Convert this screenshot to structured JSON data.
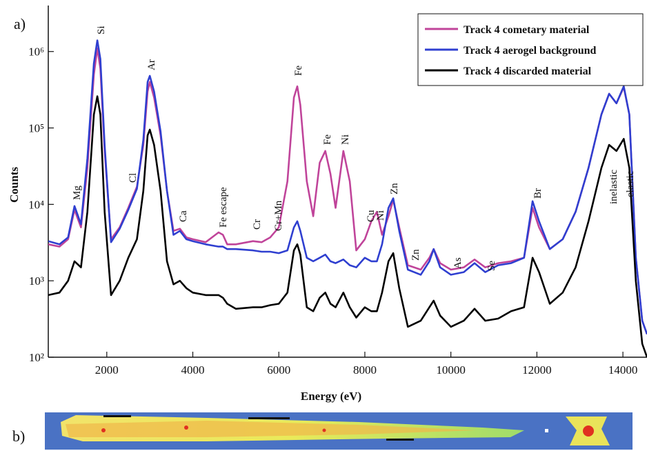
{
  "chart_data": {
    "type": "line",
    "panel_label": "a)",
    "image_label": "b)",
    "xlabel": "Energy (eV)",
    "ylabel": "Counts",
    "log_y": true,
    "xlim": [
      640,
      14560
    ],
    "ylim": [
      100,
      4000000
    ],
    "xticks": [
      2000,
      4000,
      6000,
      8000,
      10000,
      12000,
      14000
    ],
    "yticks": [
      {
        "value": 100,
        "label": "10²"
      },
      {
        "value": 1000,
        "label": "10³"
      },
      {
        "value": 10000,
        "label": "10⁴"
      },
      {
        "value": 100000,
        "label": "10⁵"
      },
      {
        "value": 1000000,
        "label": "10⁶"
      }
    ],
    "legend": "upper right",
    "annotations": [
      "Mg",
      "Si",
      "Cl",
      "Ar",
      "Ca",
      "Fe escape",
      "Cr",
      "Cr+Mn",
      "Fe",
      "Fe",
      "Ni",
      "Cu",
      "Ni",
      "Zn",
      "Zn",
      "As",
      "Se",
      "Br",
      "inelastic",
      "elastic"
    ],
    "x": [
      640,
      900,
      1100,
      1250,
      1400,
      1550,
      1700,
      1780,
      1850,
      1950,
      2100,
      2300,
      2500,
      2700,
      2850,
      2950,
      3000,
      3100,
      3250,
      3400,
      3550,
      3700,
      3850,
      4000,
      4300,
      4600,
      4700,
      4800,
      5000,
      5400,
      5600,
      5800,
      6000,
      6200,
      6350,
      6430,
      6500,
      6650,
      6800,
      6950,
      7080,
      7200,
      7320,
      7500,
      7650,
      7800,
      8000,
      8150,
      8280,
      8400,
      8550,
      8660,
      8800,
      9000,
      9300,
      9500,
      9600,
      9750,
      10000,
      10300,
      10550,
      10800,
      11100,
      11400,
      11700,
      11900,
      12050,
      12300,
      12600,
      12900,
      13200,
      13500,
      13680,
      13850,
      14020,
      14150,
      14300,
      14450,
      14560
    ],
    "series": [
      {
        "name": "Track 4 cometary material",
        "color": "#c0449a",
        "values": [
          3000,
          2800,
          3500,
          8500,
          5000,
          30000,
          500000,
          1100000,
          600000,
          50000,
          3500,
          5000,
          9000,
          17000,
          60000,
          300000,
          400000,
          250000,
          80000,
          15000,
          4500,
          4800,
          3700,
          3500,
          3200,
          4300,
          4000,
          3000,
          3000,
          3300,
          3200,
          3700,
          5000,
          20000,
          250000,
          350000,
          200000,
          20000,
          7000,
          35000,
          50000,
          25000,
          9000,
          50000,
          20000,
          2500,
          3500,
          6000,
          8000,
          4000,
          7000,
          11500,
          5000,
          1600,
          1400,
          2000,
          2600,
          1700,
          1400,
          1500,
          1900,
          1500,
          1700,
          1800,
          2000,
          9000,
          5000,
          2600,
          3500,
          8000,
          30000,
          150000,
          280000,
          210000,
          340000,
          150000,
          2000,
          300,
          200
        ]
      },
      {
        "name": "Track 4 aerogel background",
        "color": "#2f3fd0",
        "values": [
          3300,
          3000,
          3700,
          9500,
          5500,
          40000,
          700000,
          1400000,
          800000,
          60000,
          3200,
          4800,
          8500,
          16000,
          70000,
          400000,
          480000,
          300000,
          90000,
          15000,
          4000,
          4500,
          3500,
          3300,
          3000,
          2800,
          2800,
          2600,
          2600,
          2500,
          2400,
          2400,
          2300,
          2500,
          5000,
          6000,
          4500,
          2000,
          1800,
          2000,
          2200,
          1800,
          1700,
          1900,
          1600,
          1500,
          2000,
          1800,
          1800,
          3000,
          9000,
          12000,
          4500,
          1400,
          1200,
          1800,
          2600,
          1500,
          1200,
          1300,
          1700,
          1300,
          1600,
          1700,
          2000,
          11000,
          6000,
          2600,
          3500,
          8000,
          30000,
          150000,
          280000,
          210000,
          350000,
          150000,
          2000,
          300,
          200
        ]
      },
      {
        "name": "Track 4 discarded material",
        "color": "#000000",
        "values": [
          650,
          700,
          1000,
          1800,
          1500,
          8000,
          150000,
          260000,
          150000,
          8000,
          650,
          1000,
          2000,
          3500,
          15000,
          80000,
          95000,
          60000,
          15000,
          1800,
          900,
          1000,
          800,
          700,
          650,
          650,
          600,
          500,
          430,
          450,
          450,
          480,
          500,
          700,
          2500,
          3000,
          2200,
          450,
          400,
          600,
          700,
          500,
          450,
          700,
          450,
          330,
          450,
          400,
          400,
          700,
          1800,
          2300,
          800,
          250,
          300,
          450,
          550,
          350,
          250,
          300,
          430,
          300,
          320,
          400,
          450,
          2000,
          1300,
          500,
          700,
          1500,
          6000,
          30000,
          60000,
          50000,
          72000,
          30000,
          1000,
          150,
          100
        ]
      }
    ]
  }
}
